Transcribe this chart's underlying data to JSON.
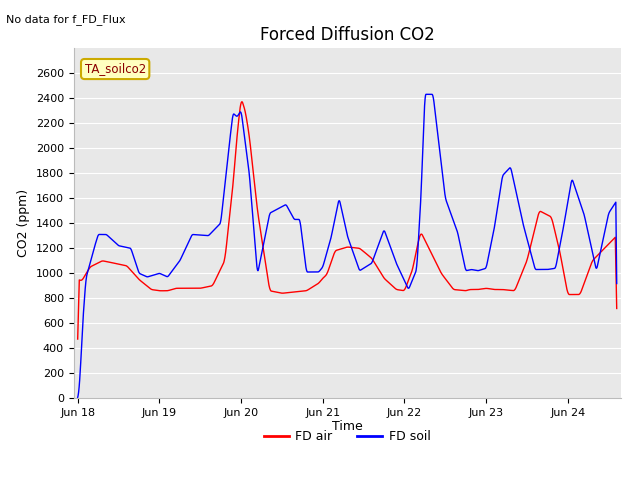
{
  "title": "Forced Diffusion CO2",
  "xlabel": "Time",
  "ylabel": "CO2 (ppm)",
  "top_left_text": "No data for f_FD_Flux",
  "annotation_box": "TA_soilco2",
  "ylim": [
    0,
    2800
  ],
  "yticks": [
    0,
    200,
    400,
    600,
    800,
    1000,
    1200,
    1400,
    1600,
    1800,
    2000,
    2200,
    2400,
    2600
  ],
  "xtick_labels": [
    "Jun 18",
    "Jun 19",
    "Jun 20",
    "Jun 21",
    "Jun 22",
    "Jun 23",
    "Jun 24"
  ],
  "plot_bg_color": "#e8e8e8",
  "red_color": "#ff0000",
  "blue_color": "#0000ff",
  "legend_items": [
    "FD air",
    "FD soil"
  ],
  "red_ctrl_t": [
    0,
    0.05,
    0.15,
    0.3,
    0.45,
    0.6,
    0.75,
    0.9,
    1.0,
    1.1,
    1.2,
    1.35,
    1.5,
    1.65,
    1.8,
    1.9,
    1.95,
    2.0,
    2.05,
    2.1,
    2.2,
    2.35,
    2.5,
    2.65,
    2.8,
    2.95,
    3.0,
    3.05,
    3.15,
    3.3,
    3.45,
    3.6,
    3.75,
    3.9,
    4.0,
    4.1,
    4.15,
    4.2,
    4.3,
    4.45,
    4.6,
    4.75,
    4.8,
    4.9,
    5.0,
    5.1,
    5.2,
    5.35,
    5.5,
    5.65,
    5.8,
    5.9,
    6.0,
    6.15,
    6.3,
    6.45,
    6.6
  ],
  "red_ctrl_v": [
    950,
    940,
    1050,
    1100,
    1080,
    1060,
    950,
    870,
    860,
    860,
    880,
    880,
    880,
    900,
    1100,
    1700,
    2100,
    2400,
    2300,
    2100,
    1500,
    860,
    840,
    850,
    860,
    920,
    960,
    990,
    1180,
    1210,
    1200,
    1120,
    960,
    870,
    860,
    1030,
    1200,
    1330,
    1200,
    1000,
    870,
    860,
    870,
    870,
    880,
    870,
    870,
    860,
    1100,
    1500,
    1450,
    1180,
    830,
    830,
    1100,
    1200,
    1300
  ],
  "blue_ctrl_t": [
    0,
    0.01,
    0.03,
    0.06,
    0.1,
    0.2,
    0.25,
    0.35,
    0.5,
    0.65,
    0.75,
    0.85,
    0.9,
    1.0,
    1.1,
    1.25,
    1.4,
    1.6,
    1.75,
    1.85,
    1.9,
    1.95,
    2.0,
    2.1,
    2.2,
    2.35,
    2.55,
    2.65,
    2.72,
    2.8,
    2.95,
    3.0,
    3.1,
    3.2,
    3.3,
    3.45,
    3.6,
    3.75,
    3.9,
    4.05,
    4.15,
    4.2,
    4.25,
    4.35,
    4.5,
    4.65,
    4.75,
    4.82,
    4.9,
    5.0,
    5.1,
    5.2,
    5.3,
    5.45,
    5.6,
    5.75,
    5.85,
    5.95,
    6.05,
    6.2,
    6.35,
    6.5,
    6.6
  ],
  "blue_ctrl_v": [
    0,
    30,
    200,
    600,
    960,
    1200,
    1310,
    1310,
    1220,
    1200,
    1000,
    970,
    980,
    1000,
    970,
    1100,
    1310,
    1300,
    1400,
    2000,
    2280,
    2250,
    2300,
    1800,
    990,
    1480,
    1550,
    1430,
    1430,
    1010,
    1010,
    1050,
    1280,
    1600,
    1300,
    1020,
    1080,
    1350,
    1080,
    870,
    1030,
    1580,
    2430,
    2430,
    1600,
    1330,
    1020,
    1030,
    1020,
    1040,
    1360,
    1780,
    1850,
    1400,
    1030,
    1030,
    1040,
    1380,
    1760,
    1470,
    1020,
    1480,
    1580
  ]
}
